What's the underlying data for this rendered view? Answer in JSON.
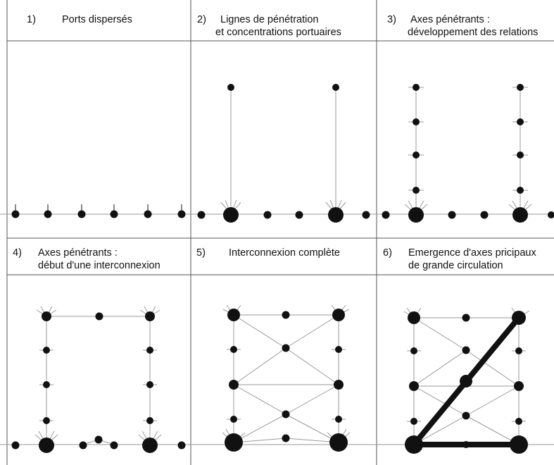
{
  "panels": [
    {
      "id": 1,
      "number": "1)",
      "title_line1": "Ports dispersés",
      "title_line2": ""
    },
    {
      "id": 2,
      "number": "2)",
      "title_line1": "Lignes de pénétration",
      "title_line2": "et concentrations portuaires"
    },
    {
      "id": 3,
      "number": "3)",
      "title_line1": "Axes pénétrants :",
      "title_line2": "développement des relations"
    },
    {
      "id": 4,
      "number": "4)",
      "title_line1": "Axes pénétrants :",
      "title_line2": "début d'une interconnexion"
    },
    {
      "id": 5,
      "number": "5)",
      "title_line1": "Interconnexion complète",
      "title_line2": ""
    },
    {
      "id": 6,
      "number": "6)",
      "title_line1": "Emergence d'axes pricipaux",
      "title_line2": "de grande circulation"
    }
  ],
  "colors": {
    "ink": "#111111",
    "line": "#9a9a9a",
    "frame": "#555555"
  }
}
